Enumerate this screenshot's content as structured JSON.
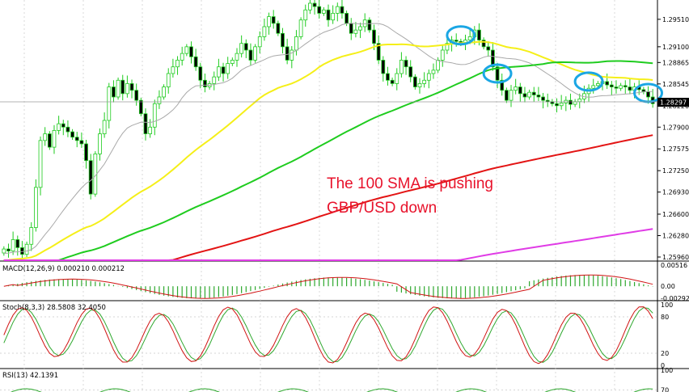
{
  "chart_data": [
    {
      "type": "candlestick",
      "name": "price",
      "y_ticks": [
        "1.29510",
        "1.29100",
        "1.28865",
        "1.28545",
        "1.28220",
        "1.27900",
        "1.27575",
        "1.27250",
        "1.26930",
        "1.26600",
        "1.26280",
        "1.25960"
      ],
      "ylim": [
        1.2596,
        1.2975
      ],
      "current_price": "1.28297",
      "current_value": 1.28297,
      "annotation": [
        "The 100 SMA is pushing",
        "GBP/USD down"
      ],
      "candles_close": [
        1.2608,
        1.2605,
        1.2622,
        1.261,
        1.26,
        1.2615,
        1.264,
        1.27,
        1.277,
        1.278,
        1.276,
        1.2785,
        1.2795,
        1.279,
        1.2783,
        1.2775,
        1.277,
        1.2765,
        1.274,
        1.269,
        1.275,
        1.278,
        1.28,
        1.285,
        1.2835,
        1.286,
        1.284,
        1.2855,
        1.2845,
        1.283,
        1.281,
        1.278,
        1.279,
        1.2825,
        1.2835,
        1.285,
        1.287,
        1.288,
        1.289,
        1.29,
        1.291,
        1.2895,
        1.288,
        1.286,
        1.285,
        1.2855,
        1.2865,
        1.288,
        1.287,
        1.2885,
        1.289,
        1.29,
        1.2915,
        1.2905,
        1.289,
        1.291,
        1.2925,
        1.294,
        1.2955,
        1.2945,
        1.293,
        1.291,
        1.289,
        1.2905,
        1.2925,
        1.295,
        1.2965,
        1.2975,
        1.297,
        1.296,
        1.2965,
        1.295,
        1.296,
        1.297,
        1.296,
        1.2945,
        1.293,
        1.2935,
        1.294,
        1.295,
        1.2935,
        1.2915,
        1.289,
        1.287,
        1.286,
        1.2855,
        1.287,
        1.289,
        1.288,
        1.2865,
        1.285,
        1.2855,
        1.286,
        1.287,
        1.2875,
        1.289,
        1.2905,
        1.2915,
        1.292,
        1.2918,
        1.2915,
        1.292,
        1.2925,
        1.2935,
        1.292,
        1.291,
        1.2905,
        1.288,
        1.286,
        1.2845,
        1.283,
        1.2845,
        1.285,
        1.284,
        1.2835,
        1.2842,
        1.2838,
        1.2835,
        1.283,
        1.2828,
        1.2825,
        1.2822,
        1.2826,
        1.283,
        1.2824,
        1.2828,
        1.2832,
        1.284,
        1.2848,
        1.2852,
        1.2855,
        1.2858,
        1.2853,
        1.285,
        1.2848,
        1.2852,
        1.285,
        1.2845,
        1.285,
        1.2846,
        1.2843,
        1.2835,
        1.2825
      ],
      "series": [
        {
          "name": "",
          "period": 20,
          "color": "#a9a9a9"
        },
        {
          "name": "",
          "period": 50,
          "color": "#f5ef18"
        },
        {
          "name": "",
          "period": 100,
          "color": "#1fcc1f"
        },
        {
          "name": "",
          "period": 200,
          "color": "#e31414"
        },
        {
          "name": "",
          "period": 400,
          "color": "#e03ce6"
        }
      ]
    },
    {
      "type": "histogram",
      "name": "macd",
      "title": "MACD(12,26,9) 0.000210 0.000212",
      "y_ticks": [
        "0.00516",
        "0.00",
        "-0.002926"
      ],
      "ylim": [
        -0.002926,
        0.00516
      ],
      "current_value": "0.00"
    },
    {
      "type": "line",
      "name": "stochastic",
      "title": "Stoch(8,3,3) 28.5808 32.4050",
      "y_ticks": [
        "100",
        "80",
        "20",
        "0"
      ],
      "ylim": [
        0,
        100
      ]
    },
    {
      "type": "line",
      "name": "rsi",
      "title": "RSI(13) 42.1391",
      "y_ticks": [
        "100",
        "70"
      ],
      "ylim": [
        0,
        100
      ]
    }
  ],
  "colors": {
    "bull": "#1fcc1f",
    "bear": "#1fcc1f",
    "grid": "#c8c8c8",
    "current_price_bg": "#000000",
    "annotation": "#e8122b",
    "highlight_circle": "#1aa6e4",
    "macd_hist": "#2ea82e",
    "macd_signal": "#d11414",
    "stoch_main": "#d11414",
    "stoch_signal": "#2ea82e",
    "rsi_line": "#2ea82e"
  }
}
